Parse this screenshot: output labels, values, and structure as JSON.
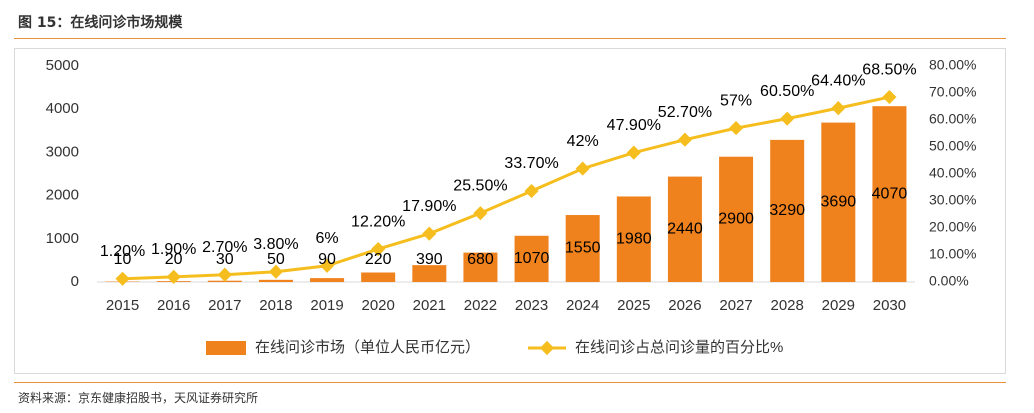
{
  "figure_title": "图 15：在线问诊市场规模",
  "source_note": "资料来源：京东健康招股书，天风证券研究所",
  "colors": {
    "bar": "#f0821e",
    "line": "#f5be1e",
    "axis": "#d9d9d9",
    "accent_rule": "#e8913a",
    "text": "#333333"
  },
  "chart_data": {
    "type": "bar",
    "categories": [
      "2015",
      "2016",
      "2017",
      "2018",
      "2019",
      "2020",
      "2021",
      "2022",
      "2023",
      "2024",
      "2025",
      "2026",
      "2027",
      "2028",
      "2029",
      "2030"
    ],
    "series": [
      {
        "name": "在线问诊市场（单位人民币亿元）",
        "type": "bar",
        "axis": "left",
        "values": [
          10,
          20,
          30,
          50,
          90,
          220,
          390,
          680,
          1070,
          1550,
          1980,
          2440,
          2900,
          3290,
          3690,
          4070
        ],
        "labels": [
          "10",
          "20",
          "30",
          "50",
          "90",
          "220",
          "390",
          "680",
          "1070",
          "1550",
          "1980",
          "2440",
          "2900",
          "3290",
          "3690",
          "4070"
        ]
      },
      {
        "name": "在线问诊占总问诊量的百分比%",
        "type": "line",
        "axis": "right",
        "values": [
          1.2,
          1.9,
          2.7,
          3.8,
          6,
          12.2,
          17.9,
          25.5,
          33.7,
          42,
          47.9,
          52.7,
          57,
          60.5,
          64.4,
          68.5
        ],
        "labels": [
          "1.20%",
          "1.90%",
          "2.70%",
          "3.80%",
          "6%",
          "12.20%",
          "17.90%",
          "25.50%",
          "33.70%",
          "42%",
          "47.90%",
          "52.70%",
          "57%",
          "60.50%",
          "64.40%",
          "68.50%"
        ]
      }
    ],
    "y_left": {
      "ylim": [
        0,
        5000
      ],
      "ticks": [
        "0",
        "1000",
        "2000",
        "3000",
        "4000",
        "5000"
      ]
    },
    "y_right": {
      "ylim": [
        0,
        80
      ],
      "ticks": [
        "0.00%",
        "10.00%",
        "20.00%",
        "30.00%",
        "40.00%",
        "50.00%",
        "60.00%",
        "70.00%",
        "80.00%"
      ]
    },
    "legend_position": "bottom-center",
    "grid": false
  }
}
